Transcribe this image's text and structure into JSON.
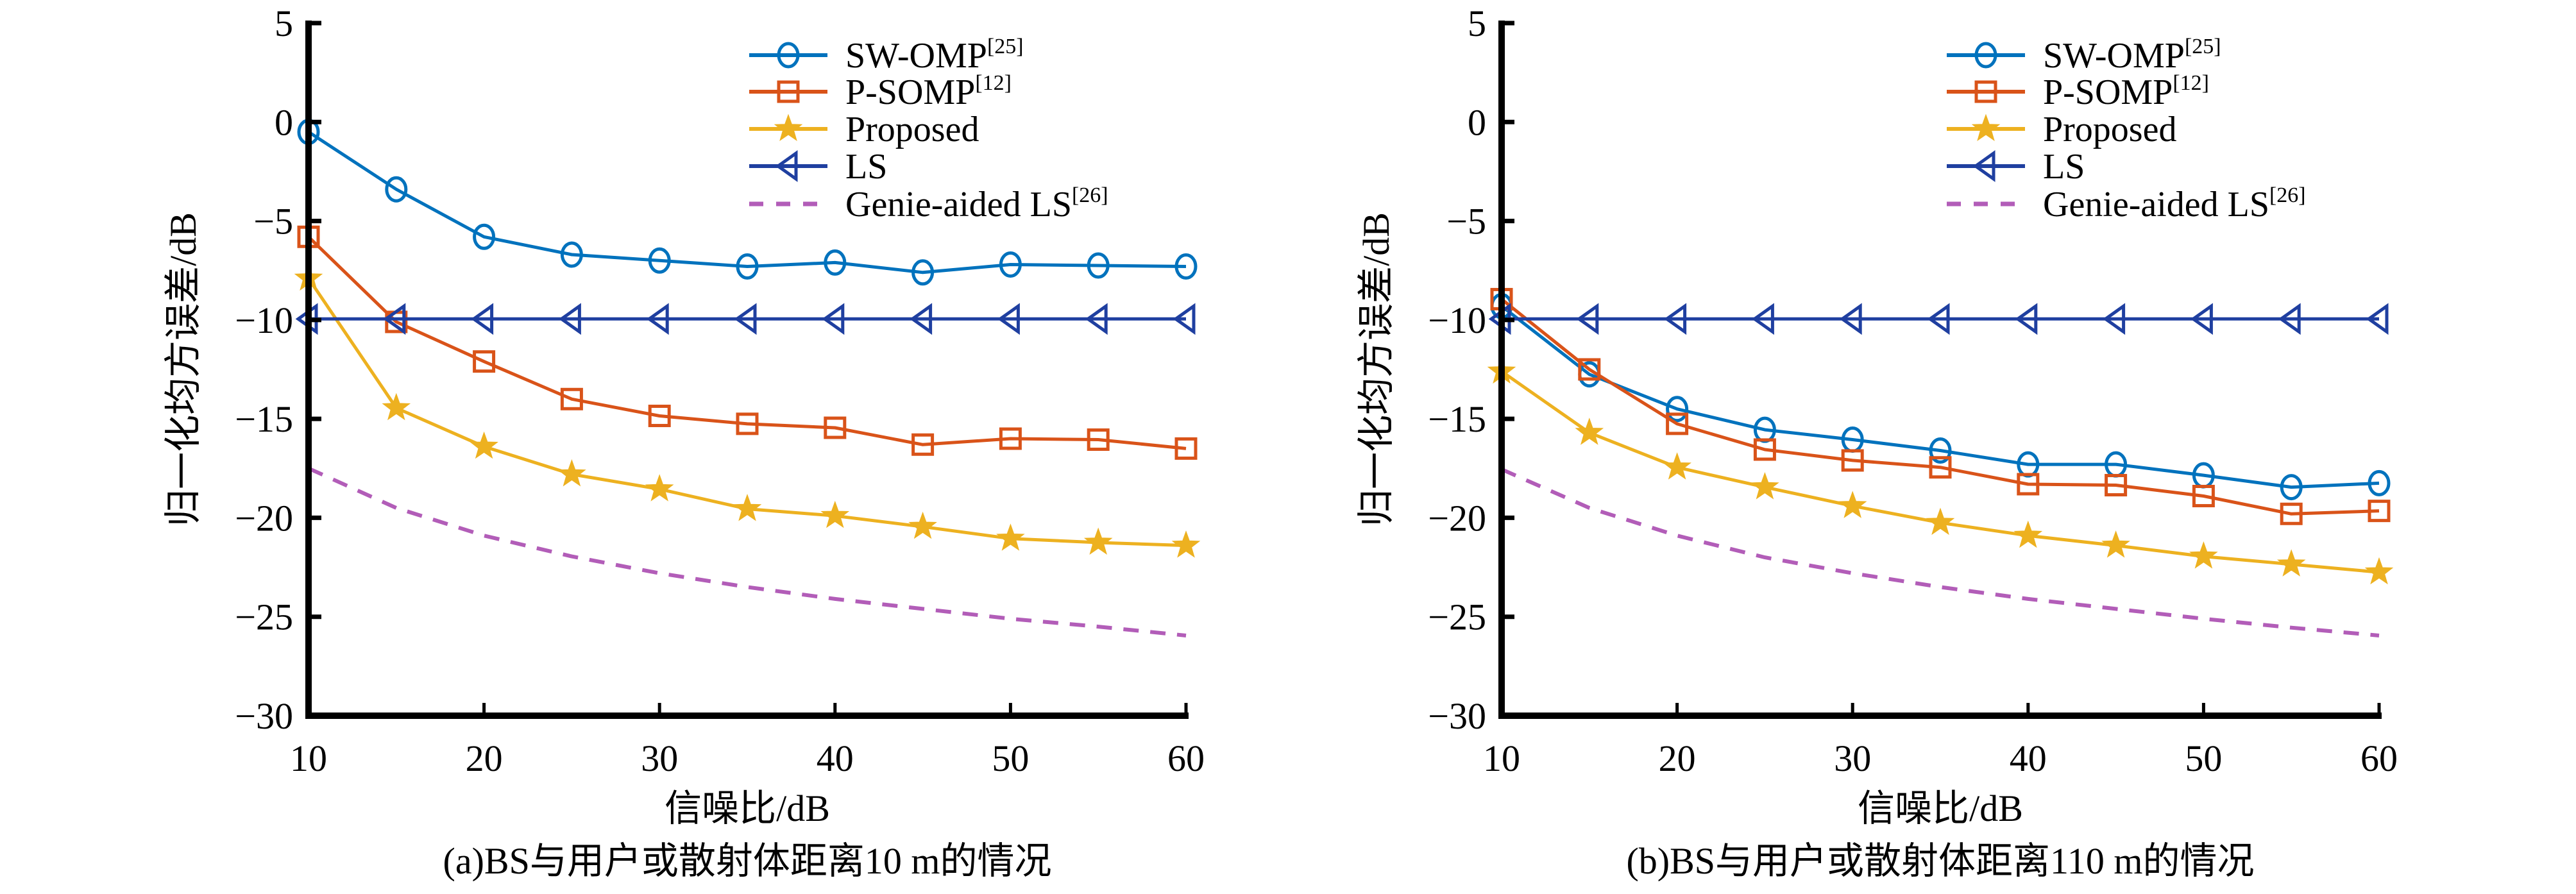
{
  "figure": {
    "panels_count": 2
  },
  "chart_data": [
    {
      "type": "line",
      "panel": "a",
      "caption": "(a)BS与用户或散射体距离10 m的情况",
      "xlabel": "信噪比/dB",
      "ylabel": "归一化均方误差/dB",
      "xlim": [
        10,
        60
      ],
      "ylim": [
        -30,
        5
      ],
      "xticks": [
        10,
        20,
        30,
        40,
        50,
        60
      ],
      "yticks": [
        5,
        0,
        -5,
        -10,
        -15,
        -20,
        -25,
        -30
      ],
      "ytick_labels": [
        "5",
        "0",
        "−5",
        "−10",
        "−15",
        "−20",
        "−25",
        "−30"
      ],
      "grid": false,
      "legend_position": "top-right",
      "x": [
        10,
        15,
        20,
        25,
        30,
        35,
        40,
        45,
        50,
        55,
        60
      ],
      "series": [
        {
          "name": "SW-OMP",
          "ref": "[25]",
          "color": "#0072BD",
          "marker": "circle",
          "linestyle": "solid",
          "values": [
            -0.5,
            -3.4,
            -5.8,
            -6.7,
            -7.0,
            -7.3,
            -7.1,
            -7.6,
            -7.2,
            -7.25,
            -7.3
          ]
        },
        {
          "name": "P-SOMP",
          "ref": "[12]",
          "color": "#D95319",
          "marker": "square",
          "linestyle": "solid",
          "values": [
            -5.8,
            -10.1,
            -12.1,
            -14.0,
            -14.85,
            -15.25,
            -15.45,
            -16.3,
            -16.0,
            -16.05,
            -16.5
          ]
        },
        {
          "name": "Proposed",
          "ref": "",
          "color": "#EDB120",
          "marker": "star",
          "linestyle": "solid",
          "values": [
            -7.9,
            -14.45,
            -16.4,
            -17.8,
            -18.55,
            -19.55,
            -19.9,
            -20.45,
            -21.05,
            -21.25,
            -21.4
          ]
        },
        {
          "name": "LS",
          "ref": "",
          "color": "#1F3FA0",
          "marker": "triangle-left",
          "linestyle": "solid",
          "values": [
            -9.95,
            -9.95,
            -9.95,
            -9.95,
            -9.95,
            -9.95,
            -9.95,
            -9.95,
            -9.95,
            -9.95,
            -9.95
          ]
        },
        {
          "name": "Genie-aided LS",
          "ref": "[26]",
          "color": "#B25DB8",
          "marker": "none",
          "linestyle": "dashed",
          "values": [
            -17.5,
            -19.5,
            -20.9,
            -21.95,
            -22.8,
            -23.5,
            -24.1,
            -24.6,
            -25.1,
            -25.5,
            -25.95
          ]
        }
      ]
    },
    {
      "type": "line",
      "panel": "b",
      "caption": "(b)BS与用户或散射体距离110 m的情况",
      "xlabel": "信噪比/dB",
      "ylabel": "归一化均方误差/dB",
      "xlim": [
        10,
        60
      ],
      "ylim": [
        -30,
        5
      ],
      "xticks": [
        10,
        20,
        30,
        40,
        50,
        60
      ],
      "yticks": [
        5,
        0,
        -5,
        -10,
        -15,
        -20,
        -25,
        -30
      ],
      "ytick_labels": [
        "5",
        "0",
        "−5",
        "−10",
        "−15",
        "−20",
        "−25",
        "−30"
      ],
      "grid": false,
      "legend_position": "top-right",
      "x": [
        10,
        15,
        20,
        25,
        30,
        35,
        40,
        45,
        50,
        55,
        60
      ],
      "series": [
        {
          "name": "SW-OMP",
          "ref": "[25]",
          "color": "#0072BD",
          "marker": "circle",
          "linestyle": "solid",
          "values": [
            -9.3,
            -12.75,
            -14.5,
            -15.55,
            -16.05,
            -16.6,
            -17.3,
            -17.3,
            -17.85,
            -18.45,
            -18.25
          ]
        },
        {
          "name": "P-SOMP",
          "ref": "[12]",
          "color": "#D95319",
          "marker": "square",
          "linestyle": "solid",
          "values": [
            -8.95,
            -12.5,
            -15.25,
            -16.55,
            -17.1,
            -17.45,
            -18.3,
            -18.35,
            -18.9,
            -19.8,
            -19.65
          ]
        },
        {
          "name": "Proposed",
          "ref": "",
          "color": "#EDB120",
          "marker": "star",
          "linestyle": "solid",
          "values": [
            -12.6,
            -15.7,
            -17.45,
            -18.45,
            -19.4,
            -20.25,
            -20.9,
            -21.4,
            -21.95,
            -22.35,
            -22.75
          ]
        },
        {
          "name": "LS",
          "ref": "",
          "color": "#1F3FA0",
          "marker": "triangle-left",
          "linestyle": "solid",
          "values": [
            -9.95,
            -9.95,
            -9.95,
            -9.95,
            -9.95,
            -9.95,
            -9.95,
            -9.95,
            -9.95,
            -9.95,
            -9.95
          ]
        },
        {
          "name": "Genie-aided LS",
          "ref": "[26]",
          "color": "#B25DB8",
          "marker": "none",
          "linestyle": "dashed",
          "values": [
            -17.55,
            -19.5,
            -20.9,
            -22.0,
            -22.8,
            -23.5,
            -24.1,
            -24.6,
            -25.1,
            -25.55,
            -25.95
          ]
        }
      ]
    }
  ]
}
